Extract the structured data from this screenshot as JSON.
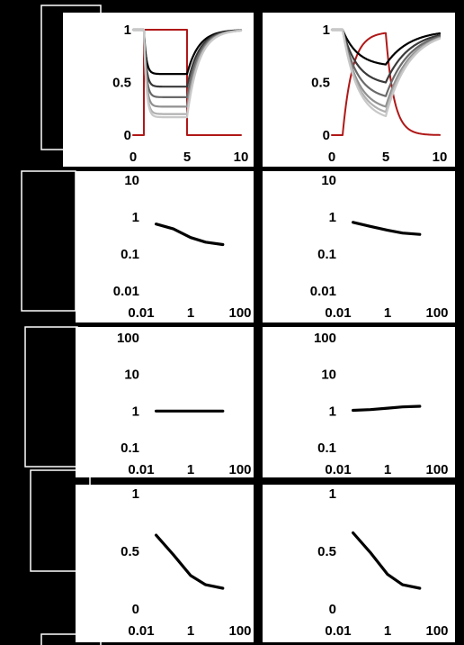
{
  "chart_data": [
    {
      "type": "line",
      "scale": "linear",
      "xlim": [
        0,
        10
      ],
      "ylim": [
        0,
        1
      ],
      "xticks": [
        "0",
        "5",
        "10"
      ],
      "yticks": [
        "0",
        "0.5",
        "1"
      ],
      "series": [
        {
          "kind": "pulse",
          "color": "#b01818",
          "values": [
            [
              0,
              0
            ],
            [
              1,
              0
            ],
            [
              1,
              1
            ],
            [
              5,
              1
            ],
            [
              5,
              0
            ],
            [
              10,
              0
            ]
          ]
        },
        {
          "kind": "response",
          "color": "#000000",
          "base": 0.58
        },
        {
          "kind": "response",
          "color": "#3a3a3a",
          "base": 0.46
        },
        {
          "kind": "response",
          "color": "#6a6a6a",
          "base": 0.36
        },
        {
          "kind": "response",
          "color": "#909090",
          "base": 0.27
        },
        {
          "kind": "response",
          "color": "#b0b0b0",
          "base": 0.2
        },
        {
          "kind": "response",
          "color": "#c8c8c8",
          "base": 0.17
        }
      ]
    },
    {
      "type": "line",
      "scale": "linear",
      "xlim": [
        0,
        10
      ],
      "ylim": [
        0,
        1
      ],
      "xticks": [
        "0",
        "5",
        "10"
      ],
      "yticks": [
        "0",
        "0.5",
        "1"
      ],
      "series": [
        {
          "kind": "smooth-pulse",
          "color": "#b01818"
        },
        {
          "kind": "slow-response",
          "color": "#000000",
          "min": 0.67
        },
        {
          "kind": "slow-response",
          "color": "#3a3a3a",
          "min": 0.5
        },
        {
          "kind": "slow-response",
          "color": "#6a6a6a",
          "min": 0.37
        },
        {
          "kind": "slow-response",
          "color": "#909090",
          "min": 0.27
        },
        {
          "kind": "slow-response",
          "color": "#b0b0b0",
          "min": 0.22
        },
        {
          "kind": "slow-response",
          "color": "#c8c8c8",
          "min": 0.18
        }
      ]
    },
    {
      "type": "line",
      "scale": "loglog",
      "xlim": [
        0.01,
        100
      ],
      "ylim": [
        0.01,
        10
      ],
      "xticks": [
        "0.01",
        "1",
        "100"
      ],
      "yticks": [
        "0.01",
        "0.1",
        "1",
        "10"
      ],
      "series": [
        {
          "color": "#000000",
          "x": [
            0.04,
            0.2,
            1,
            4,
            20
          ],
          "y": [
            0.65,
            0.48,
            0.28,
            0.21,
            0.18
          ]
        }
      ]
    },
    {
      "type": "line",
      "scale": "loglog",
      "xlim": [
        0.01,
        100
      ],
      "ylim": [
        0.01,
        10
      ],
      "xticks": [
        "0.01",
        "1",
        "100"
      ],
      "yticks": [
        "0.01",
        "0.1",
        "1",
        "10"
      ],
      "series": [
        {
          "color": "#000000",
          "x": [
            0.04,
            0.2,
            1,
            4,
            20
          ],
          "y": [
            0.72,
            0.56,
            0.44,
            0.37,
            0.34
          ]
        }
      ]
    },
    {
      "type": "line",
      "scale": "loglog",
      "xlim": [
        0.01,
        100
      ],
      "ylim": [
        0.1,
        100
      ],
      "xticks": [
        "0.01",
        "1",
        "100"
      ],
      "yticks": [
        "0.1",
        "1",
        "10",
        "100"
      ],
      "series": [
        {
          "color": "#000000",
          "x": [
            0.04,
            0.2,
            1,
            4,
            20
          ],
          "y": [
            1,
            1,
            1,
            1,
            1
          ]
        }
      ]
    },
    {
      "type": "line",
      "scale": "loglog",
      "xlim": [
        0.01,
        100
      ],
      "ylim": [
        0.1,
        100
      ],
      "xticks": [
        "0.01",
        "1",
        "100"
      ],
      "yticks": [
        "0.1",
        "1",
        "10",
        "100"
      ],
      "series": [
        {
          "color": "#000000",
          "x": [
            0.04,
            0.2,
            1,
            4,
            20
          ],
          "y": [
            1.05,
            1.1,
            1.2,
            1.3,
            1.35
          ]
        }
      ]
    },
    {
      "type": "line",
      "scale": "semilogx",
      "xlim": [
        0.01,
        100
      ],
      "ylim": [
        0,
        1
      ],
      "xticks": [
        "0.01",
        "1",
        "100"
      ],
      "yticks": [
        "0",
        "0.5",
        "1"
      ],
      "series": [
        {
          "color": "#000000",
          "x": [
            0.04,
            0.2,
            1,
            4,
            20
          ],
          "y": [
            0.64,
            0.47,
            0.29,
            0.21,
            0.18
          ]
        }
      ]
    },
    {
      "type": "line",
      "scale": "semilogx",
      "xlim": [
        0.01,
        100
      ],
      "ylim": [
        0,
        1
      ],
      "xticks": [
        "0.01",
        "1",
        "100"
      ],
      "yticks": [
        "0",
        "0.5",
        "1"
      ],
      "series": [
        {
          "color": "#000000",
          "x": [
            0.04,
            0.2,
            1,
            4,
            20
          ],
          "y": [
            0.66,
            0.49,
            0.3,
            0.21,
            0.18
          ]
        }
      ]
    }
  ]
}
